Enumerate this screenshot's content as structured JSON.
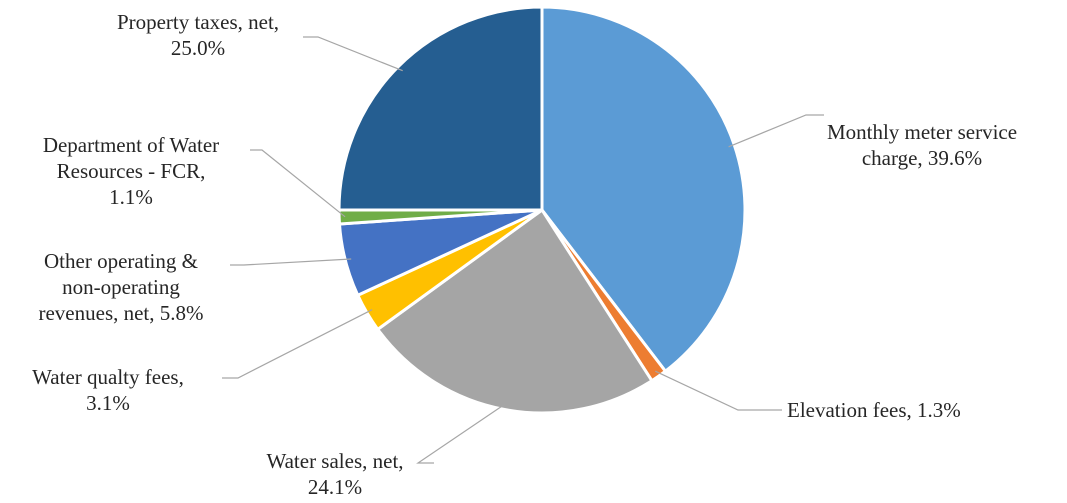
{
  "chart_data": {
    "type": "pie",
    "title": "",
    "start_angle_deg": 0,
    "direction": "clockwise",
    "slices": [
      {
        "label": "Monthly meter service charge",
        "value": 39.6,
        "display": "39.6%",
        "color": "#5b9bd5",
        "text": [
          "Monthly meter service",
          "charge, 39.6%"
        ]
      },
      {
        "label": "Elevation fees",
        "value": 1.3,
        "display": "1.3%",
        "color": "#ed7d31",
        "text": [
          "Elevation fees, 1.3%"
        ]
      },
      {
        "label": "Water sales, net",
        "value": 24.1,
        "display": "24.1%",
        "color": "#a5a5a5",
        "text": [
          "Water sales, net,",
          "24.1%"
        ]
      },
      {
        "label": "Water qualty fees",
        "value": 3.1,
        "display": "3.1%",
        "color": "#ffc000",
        "text": [
          "Water qualty fees,",
          "3.1%"
        ]
      },
      {
        "label": "Other operating & non-operating revenues, net",
        "value": 5.8,
        "display": "5.8%",
        "color": "#4472c4",
        "text": [
          "Other operating &",
          "non-operating",
          "revenues, net, 5.8%"
        ]
      },
      {
        "label": "Department of Water Resources - FCR",
        "value": 1.1,
        "display": "1.1%",
        "color": "#70ad47",
        "text": [
          "Department of Water",
          "Resources - FCR,",
          "1.1%"
        ]
      },
      {
        "label": "Property taxes, net",
        "value": 25.0,
        "display": "25.0%",
        "color": "#255e91",
        "text": [
          "Property taxes, net,",
          "25.0%"
        ]
      }
    ]
  }
}
